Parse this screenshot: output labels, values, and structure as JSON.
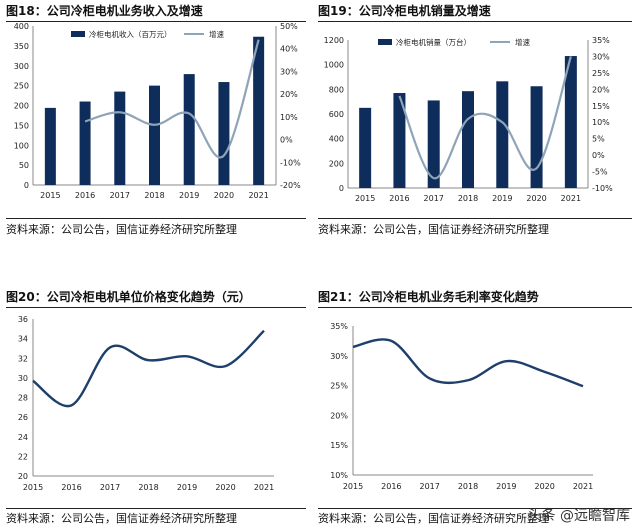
{
  "colors": {
    "bar": "#0f2d5a",
    "line": "#8fa4b8",
    "curve": "#1f3f6b"
  },
  "source_text": "资料来源：公司公告，国信证券经济研究所整理",
  "watermark": "头条 @远瞻智库",
  "chart_data": [
    {
      "id": "fig18",
      "type": "bar",
      "title": "图18：公司冷柜电机业务收入及增速",
      "categories": [
        "2015",
        "2016",
        "2017",
        "2018",
        "2019",
        "2020",
        "2021"
      ],
      "series": [
        {
          "name": "冷柜电机收入（百万元）",
          "type": "bar",
          "axis": "left",
          "values": [
            194,
            210,
            235,
            250,
            279,
            259,
            373
          ]
        },
        {
          "name": "增速",
          "type": "line",
          "axis": "right",
          "values": [
            null,
            8,
            12,
            6.5,
            11.5,
            -7,
            44
          ]
        }
      ],
      "left_ylim": [
        0,
        400
      ],
      "left_ticks": [
        0,
        50,
        100,
        150,
        200,
        250,
        300,
        350,
        400
      ],
      "right_ylim": [
        -20,
        50
      ],
      "right_ticks": [
        -20,
        -10,
        0,
        10,
        20,
        30,
        40,
        50
      ],
      "right_tick_labels": [
        "-20%",
        "-10%",
        "0%",
        "10%",
        "20%",
        "30%",
        "40%",
        "50%"
      ],
      "legend": "top"
    },
    {
      "id": "fig19",
      "type": "bar",
      "title": "图19：公司冷柜电机销量及增速",
      "categories": [
        "2015",
        "2016",
        "2017",
        "2018",
        "2019",
        "2020",
        "2021"
      ],
      "series": [
        {
          "name": "冷柜电机销量（万台）",
          "type": "bar",
          "axis": "left",
          "values": [
            650,
            770,
            710,
            785,
            865,
            825,
            1070
          ]
        },
        {
          "name": "增速",
          "type": "line",
          "axis": "right",
          "values": [
            null,
            18,
            -7,
            11,
            10,
            -4,
            30
          ]
        }
      ],
      "left_ylim": [
        0,
        1200
      ],
      "left_ticks": [
        0,
        200,
        400,
        600,
        800,
        1000,
        1200
      ],
      "right_ylim": [
        -10,
        35
      ],
      "right_ticks": [
        -10,
        -5,
        0,
        5,
        10,
        15,
        20,
        25,
        30,
        35
      ],
      "right_tick_labels": [
        "-10%",
        "-5%",
        "0%",
        "5%",
        "10%",
        "15%",
        "20%",
        "25%",
        "30%",
        "35%"
      ],
      "legend": "top"
    },
    {
      "id": "fig20",
      "type": "line",
      "title": "图20：公司冷柜电机单位价格变化趋势（元）",
      "categories": [
        "2015",
        "2016",
        "2017",
        "2018",
        "2019",
        "2020",
        "2021"
      ],
      "values": [
        29.7,
        27.2,
        33.1,
        31.8,
        32.2,
        31.2,
        34.8
      ],
      "ylim": [
        20,
        36
      ],
      "ticks": [
        20,
        22,
        24,
        26,
        28,
        30,
        32,
        34,
        36
      ]
    },
    {
      "id": "fig21",
      "type": "line",
      "title": "图21：公司冷柜电机业务毛利率变化趋势",
      "categories": [
        "2015",
        "2016",
        "2017",
        "2018",
        "2019",
        "2020",
        "2021"
      ],
      "values": [
        31.5,
        32.5,
        26.2,
        25.9,
        29.1,
        27.3,
        24.9
      ],
      "ylim": [
        10,
        35
      ],
      "ticks": [
        10,
        15,
        20,
        25,
        30,
        35
      ],
      "tick_labels": [
        "10%",
        "15%",
        "20%",
        "25%",
        "30%",
        "35%"
      ]
    }
  ]
}
